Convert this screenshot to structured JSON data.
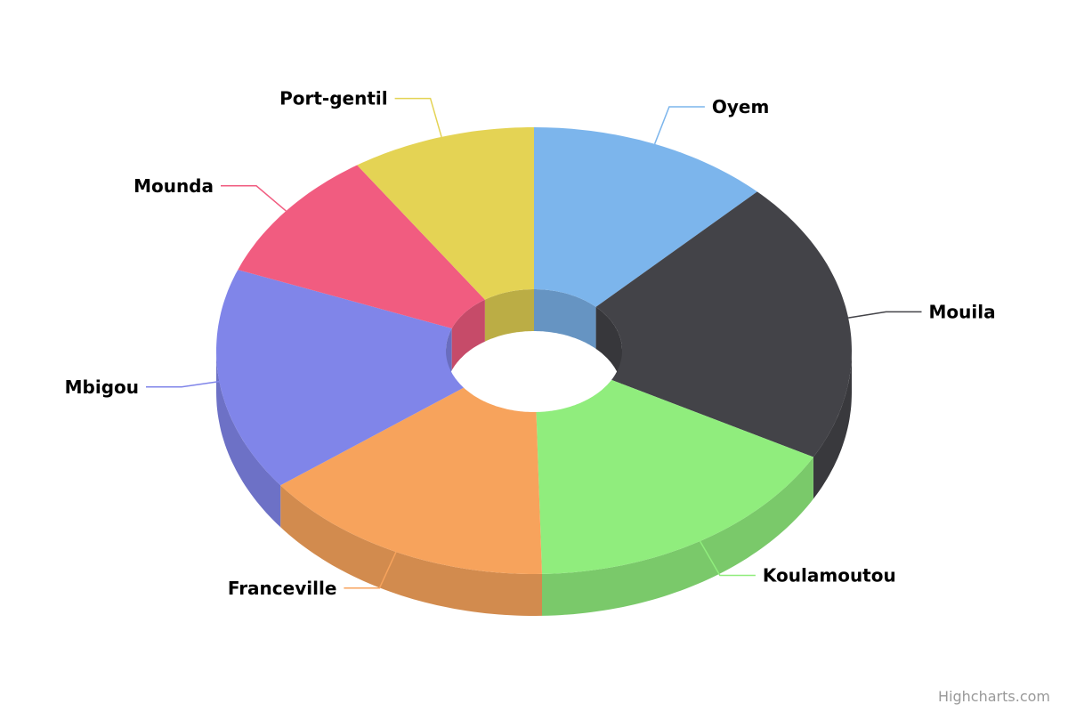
{
  "chart_data": {
    "type": "pie",
    "variant": "3d-donut",
    "title": "",
    "slices": [
      {
        "name": "Oyem",
        "value": 12.4,
        "color": "#7cb5ec"
      },
      {
        "name": "Mouila",
        "value": 20.5,
        "color": "#434348"
      },
      {
        "name": "Koulamoutou",
        "value": 16.7,
        "color": "#90ed7d"
      },
      {
        "name": "Franceville",
        "value": 15.1,
        "color": "#f7a35c"
      },
      {
        "name": "Mbigou",
        "value": 16.2,
        "color": "#8085e9"
      },
      {
        "name": "Mounda",
        "value": 9.7,
        "color": "#f15c80"
      },
      {
        "name": "Port-gentil",
        "value": 9.4,
        "color": "#e4d354"
      }
    ]
  },
  "credits": "Highcharts.com"
}
